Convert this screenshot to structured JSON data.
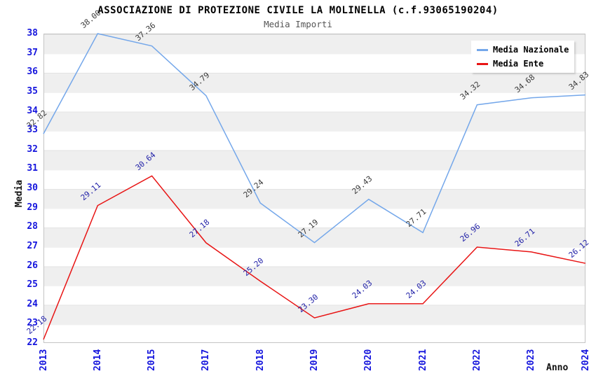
{
  "title": "ASSOCIAZIONE DI PROTEZIONE CIVILE LA MOLINELLA (c.f.93065190204)",
  "subtitle": "Media Importi",
  "axes": {
    "x_label": "Anno",
    "y_label": "Media",
    "y_tick_min": 22,
    "y_tick_max": 38,
    "y_tick_step": 1
  },
  "legend": {
    "position": "top-right",
    "items": [
      {
        "label": "Media Nazionale",
        "color": "#74a7ea"
      },
      {
        "label": "Media Ente",
        "color": "#e81414"
      }
    ]
  },
  "colors": {
    "axis_tick_text": "#1515dd",
    "band_gray": "#efefef",
    "band_white": "#ffffff",
    "plot_border": "#c4c4c4",
    "title_text": "#000000",
    "subtitle_text": "#555555"
  },
  "chart_data": {
    "type": "line",
    "title": "ASSOCIAZIONE DI PROTEZIONE CIVILE LA MOLINELLA (c.f.93065190204)",
    "subtitle": "Media Importi",
    "xlabel": "Anno",
    "ylabel": "Media",
    "ylim": [
      22,
      38
    ],
    "grid": "horizontal-bands",
    "legend_position": "top-right",
    "categories": [
      "2013",
      "2014",
      "2015",
      "2017",
      "2018",
      "2019",
      "2020",
      "2021",
      "2022",
      "2023",
      "2024"
    ],
    "series": [
      {
        "name": "Media Nazionale",
        "color": "#74a7ea",
        "label_color": "#3a3a3a",
        "values": [
          32.82,
          38.0,
          37.36,
          34.79,
          29.24,
          27.19,
          29.43,
          27.71,
          34.32,
          34.68,
          34.83
        ]
      },
      {
        "name": "Media Ente",
        "color": "#e81414",
        "label_color": "#2222a8",
        "values": [
          22.18,
          29.11,
          30.64,
          27.18,
          25.2,
          23.3,
          24.03,
          24.03,
          26.96,
          26.71,
          26.12
        ]
      }
    ]
  }
}
